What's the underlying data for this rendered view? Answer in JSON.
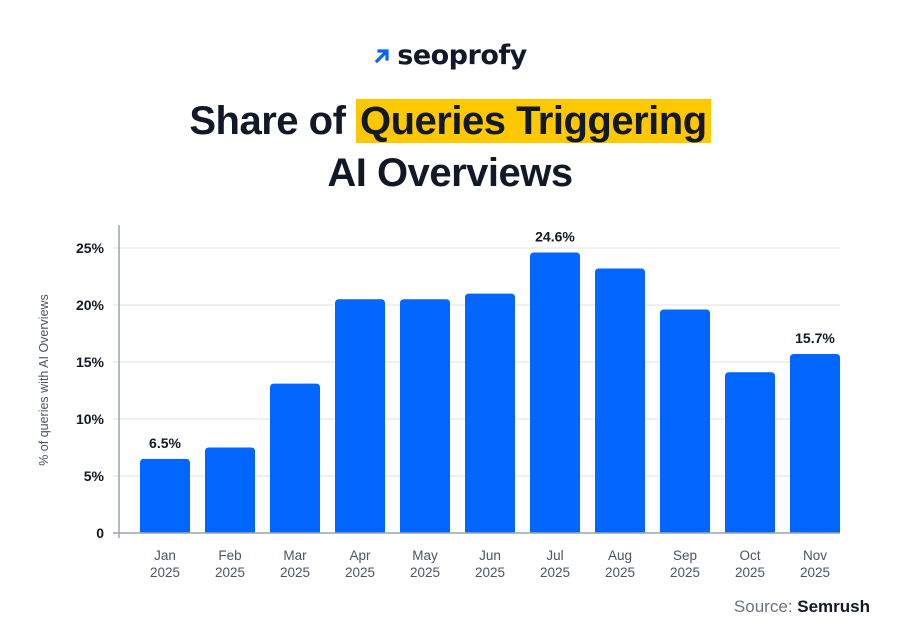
{
  "brand": {
    "name": "seoprofy",
    "accent": "#0066FF",
    "highlight": "#FFC800"
  },
  "title": {
    "before": "Share of ",
    "highlight": "Queries Triggering",
    "line2": "AI Overviews"
  },
  "source": {
    "label": "Source:",
    "name": "Semrush"
  },
  "chart_data": {
    "type": "bar",
    "title": "Share of Queries Triggering AI Overviews",
    "xlabel": "",
    "ylabel": "% of queries with AI Overviews",
    "ylim": [
      0,
      25
    ],
    "yticks": [
      "0",
      "5%",
      "10%",
      "15%",
      "20%",
      "25%"
    ],
    "ytick_values": [
      0,
      5,
      10,
      15,
      20,
      25
    ],
    "grid": true,
    "categories": [
      [
        "Jan",
        "2025"
      ],
      [
        "Feb",
        "2025"
      ],
      [
        "Mar",
        "2025"
      ],
      [
        "Apr",
        "2025"
      ],
      [
        "May",
        "2025"
      ],
      [
        "Jun",
        "2025"
      ],
      [
        "Jul",
        "2025"
      ],
      [
        "Aug",
        "2025"
      ],
      [
        "Sep",
        "2025"
      ],
      [
        "Oct",
        "2025"
      ],
      [
        "Nov",
        "2025"
      ]
    ],
    "values": [
      6.5,
      7.5,
      13.1,
      20.5,
      20.5,
      21.0,
      24.6,
      23.2,
      19.6,
      14.1,
      15.7
    ],
    "data_labels": {
      "0": "6.5%",
      "6": "24.6%",
      "10": "15.7%"
    },
    "bar_color": "#0066FF"
  }
}
